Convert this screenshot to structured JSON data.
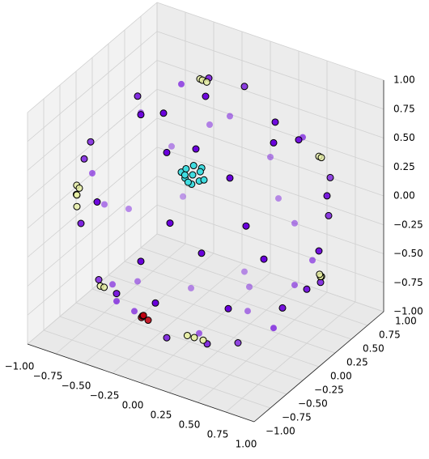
{
  "chart_data": {
    "type": "scatter3d",
    "xlim": [
      -1,
      1
    ],
    "ylim": [
      -1,
      1
    ],
    "zlim": [
      -1,
      1
    ],
    "xticks": [
      {
        "value": -1,
        "label": "−1.00"
      },
      {
        "value": -0.75,
        "label": "−0.75"
      },
      {
        "value": -0.5,
        "label": "−0.50"
      },
      {
        "value": -0.25,
        "label": "−0.25"
      },
      {
        "value": 0,
        "label": "0.00"
      },
      {
        "value": 0.25,
        "label": "0.25"
      },
      {
        "value": 0.5,
        "label": "0.50"
      },
      {
        "value": 0.75,
        "label": "0.75"
      },
      {
        "value": 1,
        "label": "1.00"
      }
    ],
    "yticks": [
      {
        "value": -1,
        "label": "−1.00"
      },
      {
        "value": -0.75,
        "label": "−0.75"
      },
      {
        "value": -0.5,
        "label": "−0.50"
      },
      {
        "value": -0.25,
        "label": "−0.25"
      },
      {
        "value": 0,
        "label": "0.00"
      },
      {
        "value": 0.25,
        "label": "0.25"
      },
      {
        "value": 0.5,
        "label": "0.50"
      },
      {
        "value": 0.75,
        "label": "0.75"
      },
      {
        "value": 1,
        "label": "1.00"
      }
    ],
    "zticks": [
      {
        "value": -1,
        "label": "−1.00"
      },
      {
        "value": -0.75,
        "label": "−0.75"
      },
      {
        "value": -0.5,
        "label": "−0.50"
      },
      {
        "value": -0.25,
        "label": "−0.25"
      },
      {
        "value": 0,
        "label": "0.00"
      },
      {
        "value": 0.25,
        "label": "0.25"
      },
      {
        "value": 0.5,
        "label": "0.50"
      },
      {
        "value": 0.75,
        "label": "0.75"
      },
      {
        "value": 1,
        "label": "1.00"
      }
    ],
    "grid": true,
    "depthshade": true,
    "series": [
      {
        "color": "#6a00dc",
        "x": [
          0.9,
          0.7,
          0.2,
          -0.5,
          -0.9,
          -0.8,
          -0.3,
          0.4,
          0.95,
          0.6,
          0.1,
          -0.6,
          -0.95,
          -0.6,
          0.1,
          0.6,
          0.5,
          -0.2,
          -0.4,
          0.2,
          0,
          0.4,
          -0.3,
          0.1,
          -0.4,
          0,
          0.8,
          0.8,
          0,
          -0.7,
          -1,
          -0.7,
          0,
          1,
          0.6,
          -0.6,
          0,
          0,
          0.6,
          -0.6,
          0,
          0,
          0.7,
          0.3,
          -0.5,
          0.5,
          -0.5,
          0.5,
          0.85,
          -0.85,
          0.3,
          -0.3,
          0.45,
          -0.45,
          0.9,
          -0.9,
          0.2,
          -0.2,
          0.65,
          -0.65
        ],
        "y": [
          0.3,
          -0.6,
          -0.9,
          -0.8,
          -0.3,
          0.4,
          0.9,
          0.8,
          -0.1,
          0.6,
          0.95,
          0.7,
          0.1,
          -0.6,
          -0.95,
          -0.7,
          0.2,
          0.4,
          -0.3,
          -0.5,
          0,
          -0.2,
          0.3,
          0.5,
          -0.4,
          -0.1,
          0.5,
          -0.5,
          -1,
          -0.7,
          0,
          0.7,
          1,
          0,
          0,
          0,
          0.6,
          -0.6,
          0,
          0,
          0.6,
          -0.6,
          0.7,
          -0.5,
          0.5,
          -0.5,
          -0.5,
          0.5,
          -0.3,
          0.3,
          0.85,
          -0.85,
          -0.85,
          0.85,
          0.2,
          -0.2,
          0.3,
          -0.3,
          0.3,
          -0.3
        ],
        "z": [
          0.3,
          0.4,
          0.4,
          0.3,
          0.3,
          0.4,
          0.3,
          0.4,
          -0.3,
          -0.5,
          -0.3,
          -0.4,
          -0.3,
          -0.5,
          -0.3,
          -0.3,
          0.85,
          0.9,
          0.85,
          0.85,
          1,
          -0.9,
          -0.9,
          -0.85,
          -0.8,
          -1,
          0,
          0.1,
          0.05,
          0,
          0,
          0,
          0,
          0,
          0.8,
          0.8,
          0.8,
          0.8,
          -0.8,
          -0.8,
          -0.8,
          -0.8,
          0.2,
          -0.8,
          0.7,
          0.7,
          -0.7,
          -0.7,
          -0.4,
          -0.4,
          -0.4,
          -0.4,
          0.2,
          0.2,
          -0.4,
          0.4,
          -0.93,
          0.93,
          0.7,
          -0.7
        ]
      },
      {
        "color": "#e6eea0",
        "x": [
          -0.85,
          -0.88,
          -0.9,
          -0.8,
          -0.85,
          0.9,
          0.92,
          0.88,
          0.3,
          0.35,
          0.25,
          -0.2,
          -0.25,
          -0.15,
          0.6,
          0.65,
          -0.5,
          -0.45
        ],
        "y": [
          -0.5,
          -0.45,
          -0.42,
          -0.55,
          -0.5,
          0.2,
          0.15,
          0.25,
          -0.7,
          -0.65,
          -0.72,
          0.3,
          0.35,
          0.28,
          0.7,
          0.65,
          -0.75,
          -0.78
        ],
        "z": [
          0.1,
          0.15,
          0.05,
          0.2,
          0,
          -0.35,
          -0.3,
          -0.38,
          -0.65,
          -0.68,
          -0.64,
          0.93,
          0.9,
          0.94,
          0.35,
          0.38,
          -0.45,
          -0.43
        ]
      },
      {
        "color": "#40dce0",
        "x": [
          0.2,
          0.25,
          0.15,
          0.22,
          0.18,
          0.27,
          0.13,
          0.2,
          0.24,
          0.16,
          0.3,
          0.1
        ],
        "y": [
          -0.55,
          -0.52,
          -0.58,
          -0.6,
          -0.5,
          -0.57,
          -0.53,
          -0.62,
          -0.48,
          -0.6,
          -0.55,
          -0.55
        ],
        "z": [
          0.65,
          0.68,
          0.62,
          0.6,
          0.7,
          0.63,
          0.67,
          0.62,
          0.69,
          0.66,
          0.64,
          0.64
        ]
      },
      {
        "color": "#c00010",
        "x": [
          -0.1,
          -0.12,
          -0.08,
          -0.05
        ],
        "y": [
          -0.8,
          -0.78,
          -0.82,
          -0.8
        ],
        "z": [
          -0.55,
          -0.58,
          -0.53,
          -0.57
        ]
      }
    ]
  }
}
